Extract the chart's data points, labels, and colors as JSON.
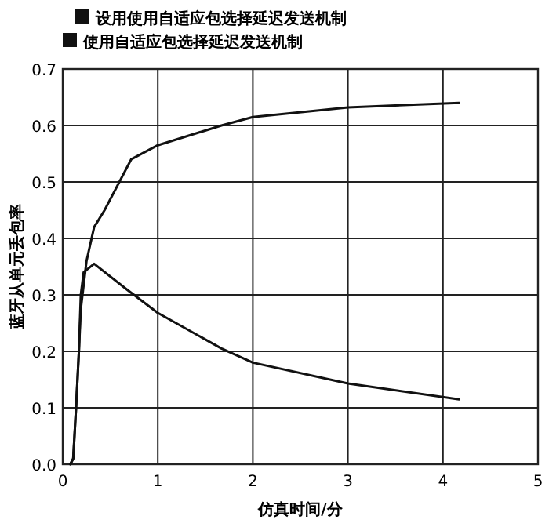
{
  "chart_data": {
    "type": "line",
    "xlabel": "仿真时间/分",
    "ylabel": "蓝牙从单元丢包率",
    "xlim": [
      0,
      5
    ],
    "xticks": [
      0,
      1,
      2,
      3,
      4,
      5
    ],
    "ylim": [
      0,
      0.7
    ],
    "yticks": [
      {
        "value": 0,
        "label": "0.0"
      },
      0.1,
      0.2,
      0.3,
      0.4,
      0.5,
      0.6,
      0.7
    ],
    "grid": true,
    "legend": "top left",
    "series": [
      {
        "name": "设用使用自适应包选择延迟发送机制",
        "color": "#111111",
        "x": [
          0.08,
          0.11,
          0.14,
          0.17,
          0.19,
          0.25,
          0.33,
          0.44,
          0.72,
          1.0,
          1.67,
          2.0,
          3.0,
          4.17
        ],
        "values": [
          0,
          0.01,
          0.1,
          0.2,
          0.275,
          0.36,
          0.42,
          0.45,
          0.54,
          0.565,
          0.6,
          0.615,
          0.632,
          0.64
        ]
      },
      {
        "name": "使用自适应包选择延迟发送机制",
        "color": "#111111",
        "x": [
          0.08,
          0.11,
          0.14,
          0.17,
          0.19,
          0.22,
          0.33,
          0.67,
          1.0,
          1.67,
          2.0,
          3.0,
          4.17
        ],
        "values": [
          0,
          0.01,
          0.1,
          0.2,
          0.3,
          0.34,
          0.355,
          0.31,
          0.268,
          0.205,
          0.18,
          0.143,
          0.115
        ]
      }
    ]
  }
}
